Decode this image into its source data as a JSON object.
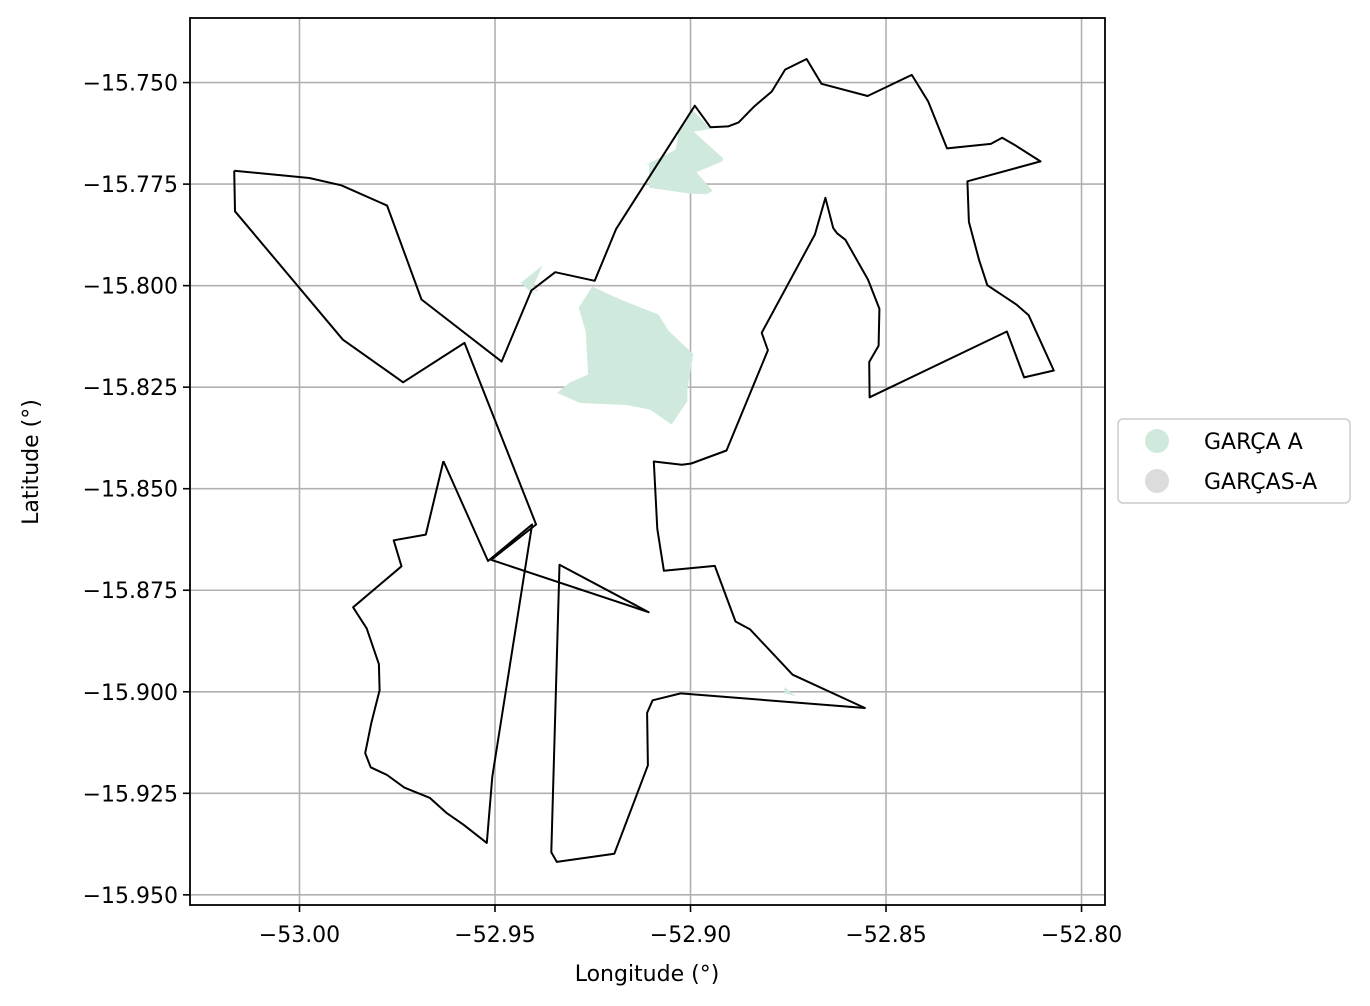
{
  "chart_data": {
    "type": "map",
    "xlabel": "Longitude (°)",
    "ylabel": "Latitude (°)",
    "xlim": [
      -53.028,
      -52.794
    ],
    "ylim": [
      -15.9525,
      -15.7341
    ],
    "xticks": [
      -53.0,
      -52.95,
      -52.9,
      -52.85,
      -52.8
    ],
    "xtick_labels": [
      "−53.00",
      "−52.95",
      "−52.90",
      "−52.85",
      "−52.80"
    ],
    "yticks": [
      -15.75,
      -15.775,
      -15.8,
      -15.825,
      -15.85,
      -15.875,
      -15.9,
      -15.925,
      -15.95
    ],
    "ytick_labels": [
      "−15.750",
      "−15.775",
      "−15.800",
      "−15.825",
      "−15.850",
      "−15.875",
      "−15.900",
      "−15.925",
      "−15.950"
    ],
    "grid": true,
    "legend_placement": "center-right outside plot",
    "legend": [
      {
        "label": "GARÇA A",
        "color": "#cfeadd"
      },
      {
        "label": "GARÇAS-A",
        "color": "#dcdcdc"
      }
    ],
    "boundary_color": "#000000",
    "boundary": [
      [
        -53.0167,
        -15.7717
      ],
      [
        -52.9975,
        -15.7735
      ],
      [
        -52.9893,
        -15.7753
      ],
      [
        -52.9776,
        -15.7803
      ],
      [
        -52.9688,
        -15.8034
      ],
      [
        -52.9483,
        -15.8187
      ],
      [
        -52.9407,
        -15.8012
      ],
      [
        -52.9346,
        -15.7967
      ],
      [
        -52.9245,
        -15.7988
      ],
      [
        -52.919,
        -15.786
      ],
      [
        -52.8989,
        -15.7557
      ],
      [
        -52.8949,
        -15.761
      ],
      [
        -52.8904,
        -15.7608
      ],
      [
        -52.8877,
        -15.7598
      ],
      [
        -52.8836,
        -15.7558
      ],
      [
        -52.8792,
        -15.7522
      ],
      [
        -52.8758,
        -15.7468
      ],
      [
        -52.8703,
        -15.7442
      ],
      [
        -52.8665,
        -15.7503
      ],
      [
        -52.8547,
        -15.7533
      ],
      [
        -52.8434,
        -15.7481
      ],
      [
        -52.8392,
        -15.7547
      ],
      [
        -52.8344,
        -15.7662
      ],
      [
        -52.8232,
        -15.7651
      ],
      [
        -52.8203,
        -15.7636
      ],
      [
        -52.8172,
        -15.7653
      ],
      [
        -52.8105,
        -15.7694
      ],
      [
        -52.8292,
        -15.7743
      ],
      [
        -52.8288,
        -15.7843
      ],
      [
        -52.8262,
        -15.7937
      ],
      [
        -52.8241,
        -15.7999
      ],
      [
        -52.8166,
        -15.8047
      ],
      [
        -52.8135,
        -15.8073
      ],
      [
        -52.8071,
        -15.8209
      ],
      [
        -52.8147,
        -15.8226
      ],
      [
        -52.8191,
        -15.8113
      ],
      [
        -52.8542,
        -15.8275
      ],
      [
        -52.8543,
        -15.8188
      ],
      [
        -52.8519,
        -15.8148
      ],
      [
        -52.8517,
        -15.8057
      ],
      [
        -52.8546,
        -15.7985
      ],
      [
        -52.8604,
        -15.7887
      ],
      [
        -52.8625,
        -15.7871
      ],
      [
        -52.8635,
        -15.7858
      ],
      [
        -52.8655,
        -15.7784
      ],
      [
        -52.8682,
        -15.7874
      ],
      [
        -52.8818,
        -15.8116
      ],
      [
        -52.8802,
        -15.8159
      ],
      [
        -52.8908,
        -15.8406
      ],
      [
        -52.8998,
        -15.8438
      ],
      [
        -52.9022,
        -15.8441
      ],
      [
        -52.9094,
        -15.8433
      ],
      [
        -52.9085,
        -15.8599
      ],
      [
        -52.9068,
        -15.8702
      ],
      [
        -52.8938,
        -15.869
      ],
      [
        -52.8885,
        -15.8827
      ],
      [
        -52.8848,
        -15.8846
      ],
      [
        -52.8739,
        -15.8958
      ],
      [
        -52.8554,
        -15.904
      ],
      [
        -52.9025,
        -15.9004
      ],
      [
        -52.9097,
        -15.9021
      ],
      [
        -52.9111,
        -15.9052
      ],
      [
        -52.9109,
        -15.9181
      ],
      [
        -52.9195,
        -15.9399
      ],
      [
        -52.9342,
        -15.9419
      ],
      [
        -52.9356,
        -15.9395
      ],
      [
        -52.9335,
        -15.8687
      ],
      [
        -52.9107,
        -15.8804
      ],
      [
        -52.951,
        -15.8675
      ],
      [
        -52.9395,
        -15.8588
      ],
      [
        -52.9578,
        -15.8141
      ],
      [
        -52.9735,
        -15.8238
      ],
      [
        -52.9889,
        -15.8133
      ],
      [
        -53.0165,
        -15.7817
      ],
      [
        -53.0167,
        -15.7717
      ]
    ],
    "boundary_2": [
      [
        -52.9632,
        -15.8432
      ],
      [
        -52.9677,
        -15.8613
      ],
      [
        -52.9759,
        -15.8627
      ],
      [
        -52.9739,
        -15.8691
      ],
      [
        -52.9863,
        -15.8792
      ],
      [
        -52.9828,
        -15.8844
      ],
      [
        -52.9797,
        -15.8932
      ],
      [
        -52.9795,
        -15.8996
      ],
      [
        -52.9816,
        -15.9076
      ],
      [
        -52.9832,
        -15.9151
      ],
      [
        -52.9818,
        -15.9186
      ],
      [
        -52.9776,
        -15.9205
      ],
      [
        -52.9732,
        -15.9236
      ],
      [
        -52.9667,
        -15.9261
      ],
      [
        -52.9623,
        -15.9299
      ],
      [
        -52.9581,
        -15.9327
      ],
      [
        -52.9521,
        -15.9372
      ],
      [
        -52.9507,
        -15.9209
      ],
      [
        -52.9405,
        -15.8588
      ],
      [
        -52.9518,
        -15.8678
      ],
      [
        -52.9632,
        -15.8432
      ]
    ],
    "regions": [
      {
        "name": "GARÇA A",
        "color": "#cfeadd",
        "polygons": [
          [
            [
              -52.9251,
              -15.8002
            ],
            [
              -52.9182,
              -15.8033
            ],
            [
              -52.9082,
              -15.8071
            ],
            [
              -52.9056,
              -15.8111
            ],
            [
              -52.8993,
              -15.8169
            ],
            [
              -52.9008,
              -15.8255
            ],
            [
              -52.9008,
              -15.8284
            ],
            [
              -52.9048,
              -15.8342
            ],
            [
              -52.9104,
              -15.8305
            ],
            [
              -52.9164,
              -15.8294
            ],
            [
              -52.9283,
              -15.8289
            ],
            [
              -52.9341,
              -15.8264
            ],
            [
              -52.9308,
              -15.8238
            ],
            [
              -52.9262,
              -15.8219
            ],
            [
              -52.9268,
              -15.8113
            ],
            [
              -52.9286,
              -15.8054
            ],
            [
              -52.9251,
              -15.8002
            ]
          ],
          [
            [
              -52.9378,
              -15.795
            ],
            [
              -52.9434,
              -15.7993
            ],
            [
              -52.9395,
              -15.8028
            ],
            [
              -52.9407,
              -15.8012
            ],
            [
              -52.9378,
              -15.795
            ]
          ],
          [
            [
              -52.8995,
              -15.7567
            ],
            [
              -52.8948,
              -15.7614
            ],
            [
              -52.8992,
              -15.7621
            ],
            [
              -52.8916,
              -15.7687
            ],
            [
              -52.8919,
              -15.7694
            ],
            [
              -52.8985,
              -15.7721
            ],
            [
              -52.8943,
              -15.7767
            ],
            [
              -52.8959,
              -15.7775
            ],
            [
              -52.9004,
              -15.7773
            ],
            [
              -52.9106,
              -15.7759
            ],
            [
              -52.9106,
              -15.7701
            ],
            [
              -52.9115,
              -15.7703
            ],
            [
              -52.9038,
              -15.7665
            ],
            [
              -52.903,
              -15.762
            ],
            [
              -52.8995,
              -15.7567
            ]
          ],
          [
            [
              -52.876,
              -15.8988
            ],
            [
              -52.8743,
              -15.9002
            ],
            [
              -52.8729,
              -15.9011
            ],
            [
              -52.8759,
              -15.9004
            ],
            [
              -52.876,
              -15.8988
            ]
          ]
        ]
      },
      {
        "name": "GARÇAS-A",
        "color": "#dcdcdc",
        "polygons": [
          [
            [
              -52.94,
              -15.8012
            ],
            [
              -52.9393,
              -15.8008
            ],
            [
              -52.9388,
              -15.8013
            ],
            [
              -52.94,
              -15.8012
            ]
          ]
        ]
      }
    ]
  }
}
